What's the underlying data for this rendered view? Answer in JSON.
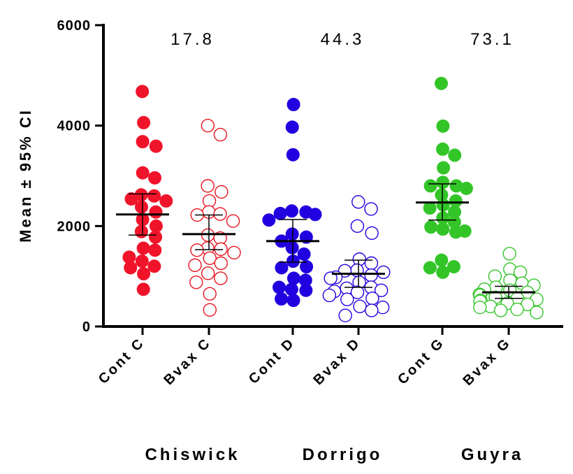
{
  "chart_data": {
    "type": "scatter",
    "ylabel": "Mean ± 95% CI",
    "ylim": [
      0,
      6000
    ],
    "yticks": [
      0,
      2000,
      4000,
      6000
    ],
    "categories": [
      "Cont C",
      "Bvax C",
      "Cont D",
      "Bvax D",
      "Cont G",
      "Bvax G"
    ],
    "groups": [
      {
        "label": "Chiswick",
        "ratio": "17.8"
      },
      {
        "label": "Dorrigo",
        "ratio": "44.3"
      },
      {
        "label": "Guyra",
        "ratio": "73.1"
      }
    ],
    "series": [
      {
        "category": "Cont C",
        "color": "#f0142a",
        "filled": true,
        "mean": 2230,
        "ci": [
          1820,
          2640
        ],
        "values": [
          4680,
          4060,
          3680,
          3590,
          3060,
          2960,
          2620,
          2600,
          2540,
          2500,
          2380,
          2280,
          2130,
          2000,
          1890,
          1780,
          1560,
          1520,
          1380,
          1300,
          1200,
          1170,
          1050,
          740
        ]
      },
      {
        "category": "Bvax C",
        "color": "#e8141e",
        "filled": false,
        "mean": 1840,
        "ci": [
          1530,
          2220
        ],
        "values": [
          4000,
          3820,
          2800,
          2680,
          2500,
          2280,
          2240,
          2220,
          2100,
          1820,
          1760,
          1560,
          1540,
          1520,
          1470,
          1360,
          1260,
          1220,
          1060,
          960,
          880,
          650,
          330
        ]
      },
      {
        "category": "Cont D",
        "color": "#2200e0",
        "filled": true,
        "mean": 1700,
        "ci": [
          1280,
          2130
        ],
        "values": [
          4420,
          3970,
          3420,
          2300,
          2280,
          2250,
          2230,
          2120,
          1840,
          1780,
          1700,
          1570,
          1440,
          1300,
          1190,
          1170,
          960,
          920,
          780,
          740,
          720,
          550,
          520
        ]
      },
      {
        "category": "Bvax D",
        "color": "#2200e0",
        "filled": false,
        "mean": 1050,
        "ci": [
          780,
          1320
        ],
        "values": [
          2480,
          2340,
          2000,
          1860,
          1340,
          1260,
          1120,
          1110,
          1080,
          1020,
          980,
          960,
          880,
          780,
          760,
          720,
          700,
          680,
          620,
          560,
          540,
          400,
          380,
          320,
          220
        ]
      },
      {
        "category": "Cont G",
        "color": "#33c528",
        "filled": true,
        "mean": 2470,
        "ci": [
          2120,
          2840
        ],
        "values": [
          4840,
          3990,
          3530,
          3410,
          3160,
          2870,
          2800,
          2800,
          2750,
          2620,
          2500,
          2420,
          2360,
          2280,
          2160,
          2080,
          1980,
          1940,
          1900,
          1880,
          1320,
          1190,
          1170,
          1080
        ]
      },
      {
        "category": "Bvax G",
        "color": "#33c528",
        "filled": false,
        "mean": 680,
        "ci": [
          560,
          800
        ],
        "values": [
          1450,
          1140,
          1080,
          1000,
          920,
          860,
          820,
          780,
          740,
          720,
          680,
          640,
          620,
          580,
          560,
          540,
          520,
          500,
          460,
          440,
          400,
          380,
          340,
          320,
          280
        ]
      }
    ]
  }
}
